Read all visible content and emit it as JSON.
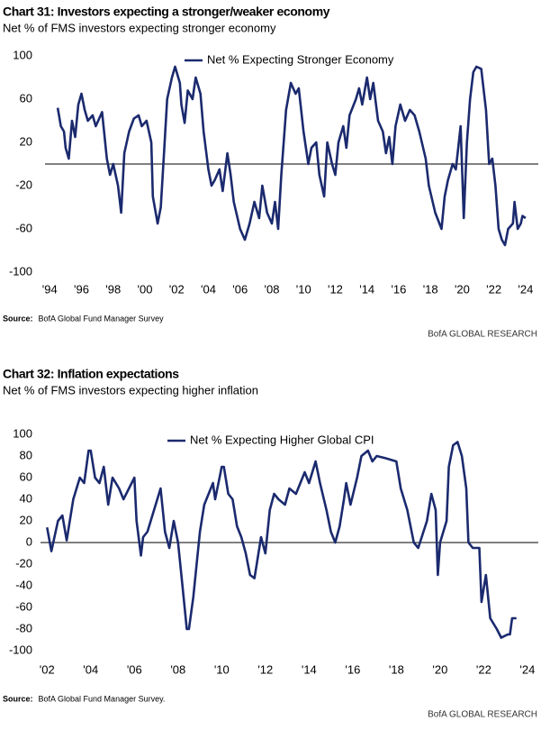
{
  "chart_data": [
    {
      "type": "line",
      "title": "Chart 31: Investors expecting a stronger/weaker economy",
      "subtitle": "Net % of FMS investors expecting stronger economy",
      "x": [
        1994.5,
        1994.7,
        1994.9,
        1995.0,
        1995.2,
        1995.4,
        1995.6,
        1995.8,
        1996.0,
        1996.2,
        1996.4,
        1996.7,
        1996.9,
        1997.3,
        1997.6,
        1997.8,
        1998.0,
        1998.3,
        1998.5,
        1998.7,
        1999.0,
        1999.3,
        1999.6,
        1999.8,
        2000.1,
        2000.4,
        2000.5,
        2000.8,
        2001.0,
        2001.2,
        2001.4,
        2001.7,
        2001.9,
        2002.2,
        2002.3,
        2002.5,
        2002.7,
        2003.0,
        2003.2,
        2003.5,
        2003.7,
        2004.0,
        2004.2,
        2004.4,
        2004.7,
        2004.9,
        2005.2,
        2005.4,
        2005.6,
        2006.0,
        2006.3,
        2006.6,
        2006.9,
        2007.2,
        2007.4,
        2007.7,
        2008.0,
        2008.2,
        2008.4,
        2008.6,
        2008.9,
        2009.2,
        2009.5,
        2009.7,
        2010.0,
        2010.3,
        2010.5,
        2010.8,
        2011.0,
        2011.3,
        2011.5,
        2011.8,
        2012.0,
        2012.2,
        2012.5,
        2012.7,
        2012.9,
        2013.3,
        2013.5,
        2013.7,
        2014.0,
        2014.2,
        2014.4,
        2014.7,
        2015.0,
        2015.2,
        2015.4,
        2015.6,
        2015.8,
        2016.1,
        2016.4,
        2016.7,
        2017.0,
        2017.3,
        2017.7,
        2017.9,
        2018.3,
        2018.7,
        2018.9,
        2019.1,
        2019.4,
        2019.6,
        2019.9,
        2020.1,
        2020.3,
        2020.5,
        2020.7,
        2020.9,
        2021.2,
        2021.5,
        2021.7,
        2021.9,
        2022.1,
        2022.3,
        2022.5,
        2022.7,
        2022.9,
        2023.2,
        2023.3,
        2023.5,
        2023.7,
        2023.8,
        2024.0
      ],
      "series": [
        {
          "name": "Net % Expecting Stronger Economy",
          "color": "#1b2a6e",
          "values": [
            52,
            35,
            30,
            15,
            5,
            40,
            25,
            55,
            65,
            50,
            40,
            45,
            35,
            48,
            5,
            -10,
            0,
            -20,
            -45,
            10,
            30,
            42,
            45,
            35,
            40,
            20,
            -30,
            -55,
            -40,
            10,
            60,
            80,
            90,
            75,
            55,
            38,
            68,
            60,
            80,
            65,
            30,
            -5,
            -20,
            -15,
            -5,
            -25,
            10,
            -10,
            -35,
            -60,
            -70,
            -55,
            -35,
            -50,
            -20,
            -45,
            -55,
            -35,
            -60,
            -10,
            50,
            75,
            65,
            70,
            30,
            0,
            15,
            20,
            -10,
            -30,
            20,
            0,
            -10,
            20,
            35,
            15,
            45,
            60,
            70,
            55,
            80,
            60,
            75,
            40,
            30,
            10,
            25,
            0,
            35,
            55,
            40,
            50,
            45,
            30,
            5,
            -20,
            -45,
            -60,
            -30,
            -15,
            0,
            -5,
            35,
            -50,
            20,
            60,
            85,
            90,
            88,
            50,
            0,
            5,
            -20,
            -60,
            -70,
            -75,
            -60,
            -55,
            -35,
            -60,
            -55,
            -48,
            -50
          ]
        }
      ],
      "xlim": [
        1993.7,
        2024.8
      ],
      "xticks": [
        {
          "value": 1994,
          "label": "'94"
        },
        {
          "value": 1996,
          "label": "'96"
        },
        {
          "value": 1998,
          "label": "'98"
        },
        {
          "value": 2000,
          "label": "'00"
        },
        {
          "value": 2002,
          "label": "'02"
        },
        {
          "value": 2004,
          "label": "'04"
        },
        {
          "value": 2006,
          "label": "'06"
        },
        {
          "value": 2008,
          "label": "'08"
        },
        {
          "value": 2010,
          "label": "'10"
        },
        {
          "value": 2012,
          "label": "'12"
        },
        {
          "value": 2014,
          "label": "'14"
        },
        {
          "value": 2016,
          "label": "'16"
        },
        {
          "value": 2018,
          "label": "'18"
        },
        {
          "value": 2020,
          "label": "'20"
        },
        {
          "value": 2022,
          "label": "'22"
        },
        {
          "value": 2024,
          "label": "'24"
        }
      ],
      "ylim": [
        -100,
        100
      ],
      "yticks": [
        100,
        60,
        20,
        -20,
        -60,
        -100
      ],
      "source_label": "Source:",
      "source": "BofA Global Fund Manager Survey",
      "credit": "BofA GLOBAL RESEARCH"
    },
    {
      "type": "line",
      "title": "Chart 32: Inflation expectations",
      "subtitle": "Net % of FMS investors expecting higher inflation",
      "x": [
        2002.0,
        2002.2,
        2002.5,
        2002.7,
        2002.9,
        2003.2,
        2003.5,
        2003.7,
        2003.9,
        2004.0,
        2004.2,
        2004.4,
        2004.6,
        2004.8,
        2005.0,
        2005.3,
        2005.5,
        2006.0,
        2006.1,
        2006.3,
        2006.4,
        2006.6,
        2006.9,
        2007.2,
        2007.4,
        2007.6,
        2007.8,
        2008.0,
        2008.2,
        2008.4,
        2008.5,
        2008.7,
        2009.0,
        2009.2,
        2009.6,
        2009.7,
        2009.9,
        2010.0,
        2010.1,
        2010.3,
        2010.5,
        2010.7,
        2010.9,
        2011.1,
        2011.3,
        2011.5,
        2011.8,
        2012.0,
        2012.2,
        2012.4,
        2012.6,
        2012.9,
        2013.1,
        2013.4,
        2013.8,
        2014.0,
        2014.3,
        2014.5,
        2014.8,
        2015.0,
        2015.2,
        2015.4,
        2015.6,
        2015.7,
        2015.9,
        2016.2,
        2016.4,
        2016.7,
        2016.9,
        2017.1,
        2017.5,
        2018.0,
        2018.2,
        2018.5,
        2018.8,
        2019.0,
        2019.4,
        2019.6,
        2019.8,
        2019.9,
        2020.0,
        2020.3,
        2020.4,
        2020.6,
        2020.8,
        2021.0,
        2021.2,
        2021.3,
        2021.5,
        2021.8,
        2021.9,
        2022.1,
        2022.3,
        2022.6,
        2022.8,
        2023.1,
        2023.2,
        2023.3,
        2023.5
      ],
      "series": [
        {
          "name": "Net % Expecting Higher Global CPI",
          "color": "#1b2a6e",
          "values": [
            14,
            -8,
            20,
            25,
            2,
            40,
            60,
            55,
            85,
            85,
            60,
            55,
            70,
            35,
            60,
            50,
            40,
            60,
            20,
            -12,
            5,
            10,
            30,
            50,
            10,
            -5,
            20,
            0,
            -40,
            -80,
            -80,
            -50,
            10,
            35,
            55,
            40,
            60,
            70,
            70,
            45,
            40,
            15,
            5,
            -10,
            -30,
            -33,
            5,
            -10,
            30,
            45,
            40,
            35,
            50,
            45,
            65,
            55,
            75,
            55,
            30,
            10,
            0,
            15,
            40,
            55,
            35,
            60,
            80,
            85,
            75,
            80,
            78,
            75,
            50,
            30,
            0,
            -5,
            20,
            45,
            30,
            -30,
            0,
            20,
            70,
            90,
            93,
            80,
            50,
            0,
            -5,
            -5,
            -55,
            -30,
            -70,
            -80,
            -88,
            -85,
            -85,
            -70,
            -70
          ]
        }
      ],
      "xlim": [
        2001.7,
        2024.5
      ],
      "xticks": [
        {
          "value": 2002,
          "label": "'02"
        },
        {
          "value": 2004,
          "label": "'04"
        },
        {
          "value": 2006,
          "label": "'06"
        },
        {
          "value": 2008,
          "label": "'08"
        },
        {
          "value": 2010,
          "label": "'10"
        },
        {
          "value": 2012,
          "label": "'12"
        },
        {
          "value": 2014,
          "label": "'14"
        },
        {
          "value": 2016,
          "label": "'16"
        },
        {
          "value": 2018,
          "label": "'18"
        },
        {
          "value": 2020,
          "label": "'20"
        },
        {
          "value": 2022,
          "label": "'22"
        },
        {
          "value": 2024,
          "label": "'24"
        }
      ],
      "ylim": [
        -100,
        100
      ],
      "yticks": [
        100,
        80,
        60,
        40,
        20,
        0,
        -20,
        -40,
        -60,
        -80,
        -100
      ],
      "source_label": "Source:",
      "source": "BofA Global Fund Manager Survey.",
      "credit": "BofA GLOBAL RESEARCH"
    }
  ]
}
